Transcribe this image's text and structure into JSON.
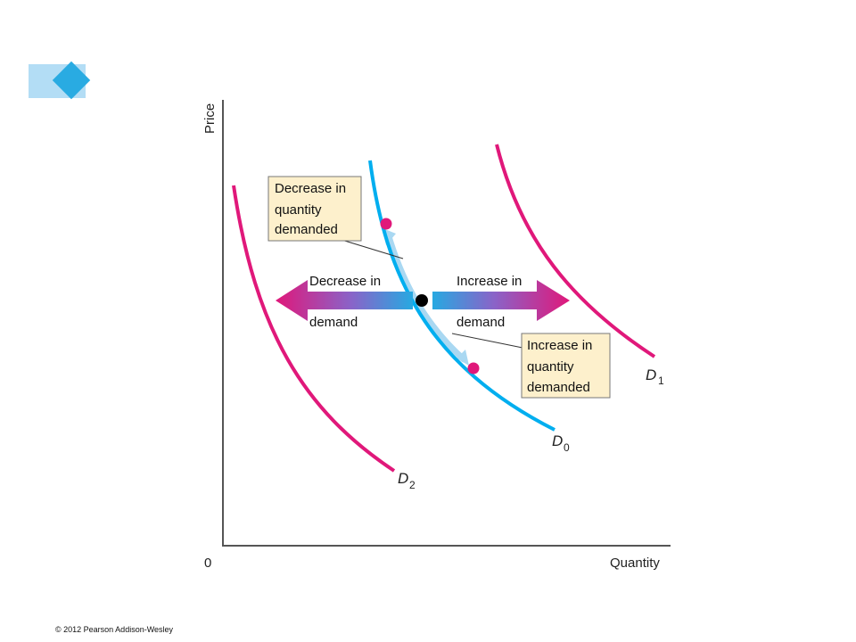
{
  "axes": {
    "y_label": "Price",
    "x_label": "Quantity",
    "origin": "0"
  },
  "curves": [
    {
      "name": "D",
      "subscript": "0",
      "color": "#00aeef"
    },
    {
      "name": "D",
      "subscript": "1",
      "color": "#e0187a"
    },
    {
      "name": "D",
      "subscript": "2",
      "color": "#e0187a"
    }
  ],
  "shift_arrows": {
    "left": {
      "line1": "Decrease in",
      "line2": "demand"
    },
    "right": {
      "line1": "Increase in",
      "line2": "demand"
    }
  },
  "callouts": {
    "decrease_qd": [
      "Decrease in",
      "quantity",
      "demanded"
    ],
    "increase_qd": [
      "Increase in",
      "quantity",
      "demanded"
    ]
  },
  "copyright": "© 2012 Pearson Addison-Wesley",
  "colors": {
    "magenta": "#e0187a",
    "cyan": "#00aeef",
    "arrow_light": "#a9d8f2",
    "callout_bg": "#fdf0cc",
    "tab_light": "#b3ddf5",
    "tab_diamond": "#29abe2"
  }
}
